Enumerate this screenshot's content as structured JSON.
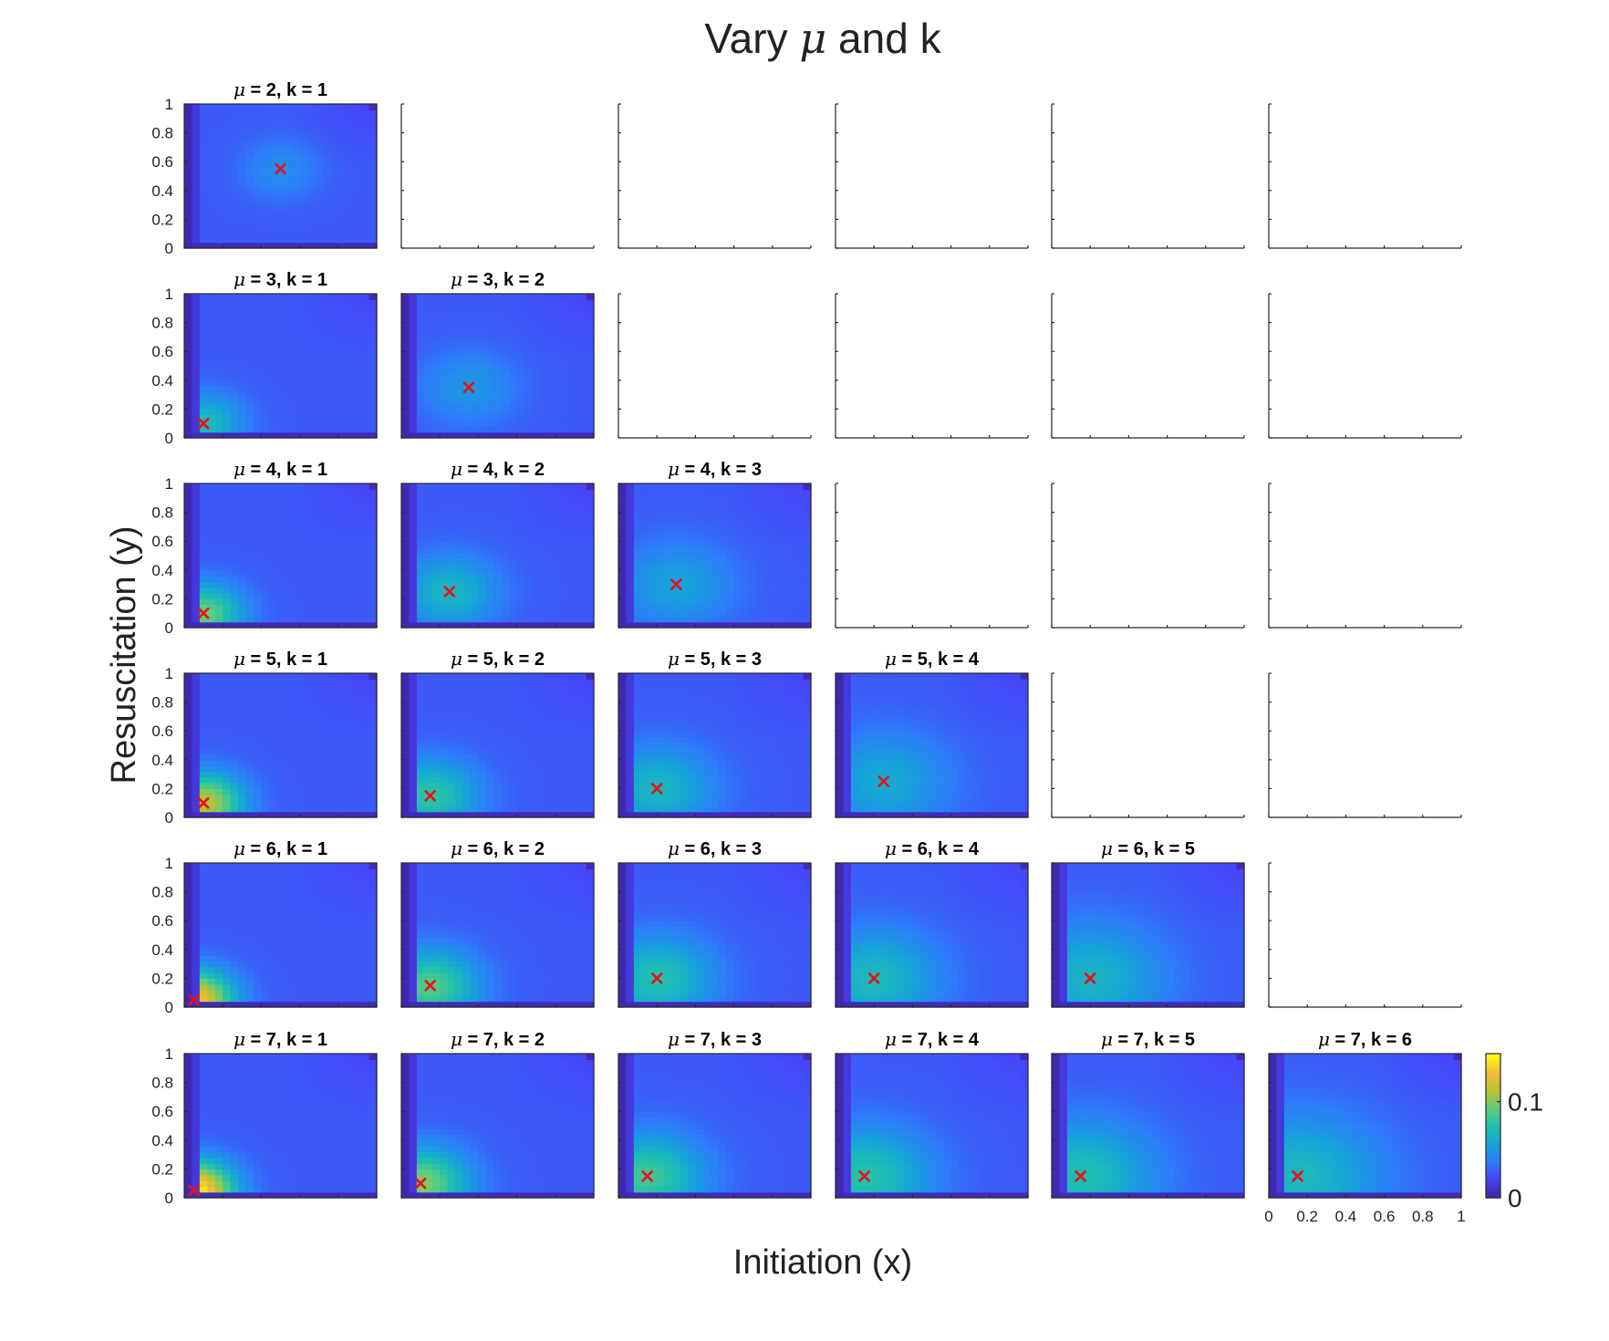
{
  "figure": {
    "title_prefix": "Vary ",
    "title_mu": "μ",
    "title_suffix": " and k",
    "xlabel": "Initiation (x)",
    "ylabel": "Resuscitation (y)"
  },
  "chart_data": {
    "type": "heatmap",
    "grid": {
      "rows": 6,
      "cols": 6
    },
    "title": "Vary μ and k",
    "xlabel": "Initiation (x)",
    "ylabel": "Resuscitation (y)",
    "xlim": [
      0,
      1
    ],
    "ylim": [
      0,
      1
    ],
    "xticks": [
      0,
      0.2,
      0.4,
      0.6,
      0.8,
      1
    ],
    "xtick_labels": [
      "0",
      "0.2",
      "0.4",
      "0.6",
      "0.8",
      "1"
    ],
    "yticks": [
      0,
      0.2,
      0.4,
      0.6,
      0.8,
      1
    ],
    "ytick_labels": [
      "0",
      "0.2",
      "0.4",
      "0.6",
      "0.8",
      "1"
    ],
    "colormap": "parula",
    "colormap_stops": [
      "#3e26a8",
      "#4743f8",
      "#2c7ef8",
      "#16a4d9",
      "#1fbfb0",
      "#62cc7c",
      "#b8c431",
      "#f5bb3b",
      "#f9fb15"
    ],
    "clim": [
      0,
      0.15
    ],
    "colorbar_ticks": [
      0,
      0.1
    ],
    "colorbar_tick_labels": [
      "0",
      "0.1"
    ],
    "marker": {
      "symbol": "x",
      "color": "#e8101a"
    },
    "panels": [
      {
        "row": 0,
        "col": 0,
        "mu": 2,
        "k": 1,
        "title": " = 2, k = 1",
        "max_x": 0.5,
        "max_y": 0.55,
        "peak": 0.045
      },
      {
        "row": 1,
        "col": 0,
        "mu": 3,
        "k": 1,
        "title": " = 3, k = 1",
        "max_x": 0.1,
        "max_y": 0.1,
        "peak": 0.072
      },
      {
        "row": 1,
        "col": 1,
        "mu": 3,
        "k": 2,
        "title": " = 3, k = 2",
        "max_x": 0.35,
        "max_y": 0.35,
        "peak": 0.05
      },
      {
        "row": 2,
        "col": 0,
        "mu": 4,
        "k": 1,
        "title": " = 4, k = 1",
        "max_x": 0.1,
        "max_y": 0.1,
        "peak": 0.095
      },
      {
        "row": 2,
        "col": 1,
        "mu": 4,
        "k": 2,
        "title": " = 4, k = 2",
        "max_x": 0.25,
        "max_y": 0.25,
        "peak": 0.068
      },
      {
        "row": 2,
        "col": 2,
        "mu": 4,
        "k": 3,
        "title": " = 4, k = 3",
        "max_x": 0.3,
        "max_y": 0.3,
        "peak": 0.056
      },
      {
        "row": 3,
        "col": 0,
        "mu": 5,
        "k": 1,
        "title": " = 5, k = 1",
        "max_x": 0.1,
        "max_y": 0.1,
        "peak": 0.115
      },
      {
        "row": 3,
        "col": 1,
        "mu": 5,
        "k": 2,
        "title": " = 5, k = 2",
        "max_x": 0.15,
        "max_y": 0.15,
        "peak": 0.08
      },
      {
        "row": 3,
        "col": 2,
        "mu": 5,
        "k": 3,
        "title": " = 5, k = 3",
        "max_x": 0.2,
        "max_y": 0.2,
        "peak": 0.068
      },
      {
        "row": 3,
        "col": 3,
        "mu": 5,
        "k": 4,
        "title": " = 5, k = 4",
        "max_x": 0.25,
        "max_y": 0.25,
        "peak": 0.06
      },
      {
        "row": 4,
        "col": 0,
        "mu": 6,
        "k": 1,
        "title": " = 6, k = 1",
        "max_x": 0.05,
        "max_y": 0.05,
        "peak": 0.135
      },
      {
        "row": 4,
        "col": 1,
        "mu": 6,
        "k": 2,
        "title": " = 6, k = 2",
        "max_x": 0.15,
        "max_y": 0.15,
        "peak": 0.09
      },
      {
        "row": 4,
        "col": 2,
        "mu": 6,
        "k": 3,
        "title": " = 6, k = 3",
        "max_x": 0.2,
        "max_y": 0.2,
        "peak": 0.076
      },
      {
        "row": 4,
        "col": 3,
        "mu": 6,
        "k": 4,
        "title": " = 6, k = 4",
        "max_x": 0.2,
        "max_y": 0.2,
        "peak": 0.07
      },
      {
        "row": 4,
        "col": 4,
        "mu": 6,
        "k": 5,
        "title": " = 6, k = 5",
        "max_x": 0.2,
        "max_y": 0.2,
        "peak": 0.066
      },
      {
        "row": 5,
        "col": 0,
        "mu": 7,
        "k": 1,
        "title": " = 7, k = 1",
        "max_x": 0.05,
        "max_y": 0.05,
        "peak": 0.15
      },
      {
        "row": 5,
        "col": 1,
        "mu": 7,
        "k": 2,
        "title": " = 7, k = 2",
        "max_x": 0.1,
        "max_y": 0.1,
        "peak": 0.1
      },
      {
        "row": 5,
        "col": 2,
        "mu": 7,
        "k": 3,
        "title": " = 7, k = 3",
        "max_x": 0.15,
        "max_y": 0.15,
        "peak": 0.085
      },
      {
        "row": 5,
        "col": 3,
        "mu": 7,
        "k": 4,
        "title": " = 7, k = 4",
        "max_x": 0.15,
        "max_y": 0.15,
        "peak": 0.078
      },
      {
        "row": 5,
        "col": 4,
        "mu": 7,
        "k": 5,
        "title": " = 7, k = 5",
        "max_x": 0.15,
        "max_y": 0.15,
        "peak": 0.074
      },
      {
        "row": 5,
        "col": 5,
        "mu": 7,
        "k": 6,
        "title": " = 7, k = 6",
        "max_x": 0.15,
        "max_y": 0.15,
        "peak": 0.07
      }
    ]
  }
}
